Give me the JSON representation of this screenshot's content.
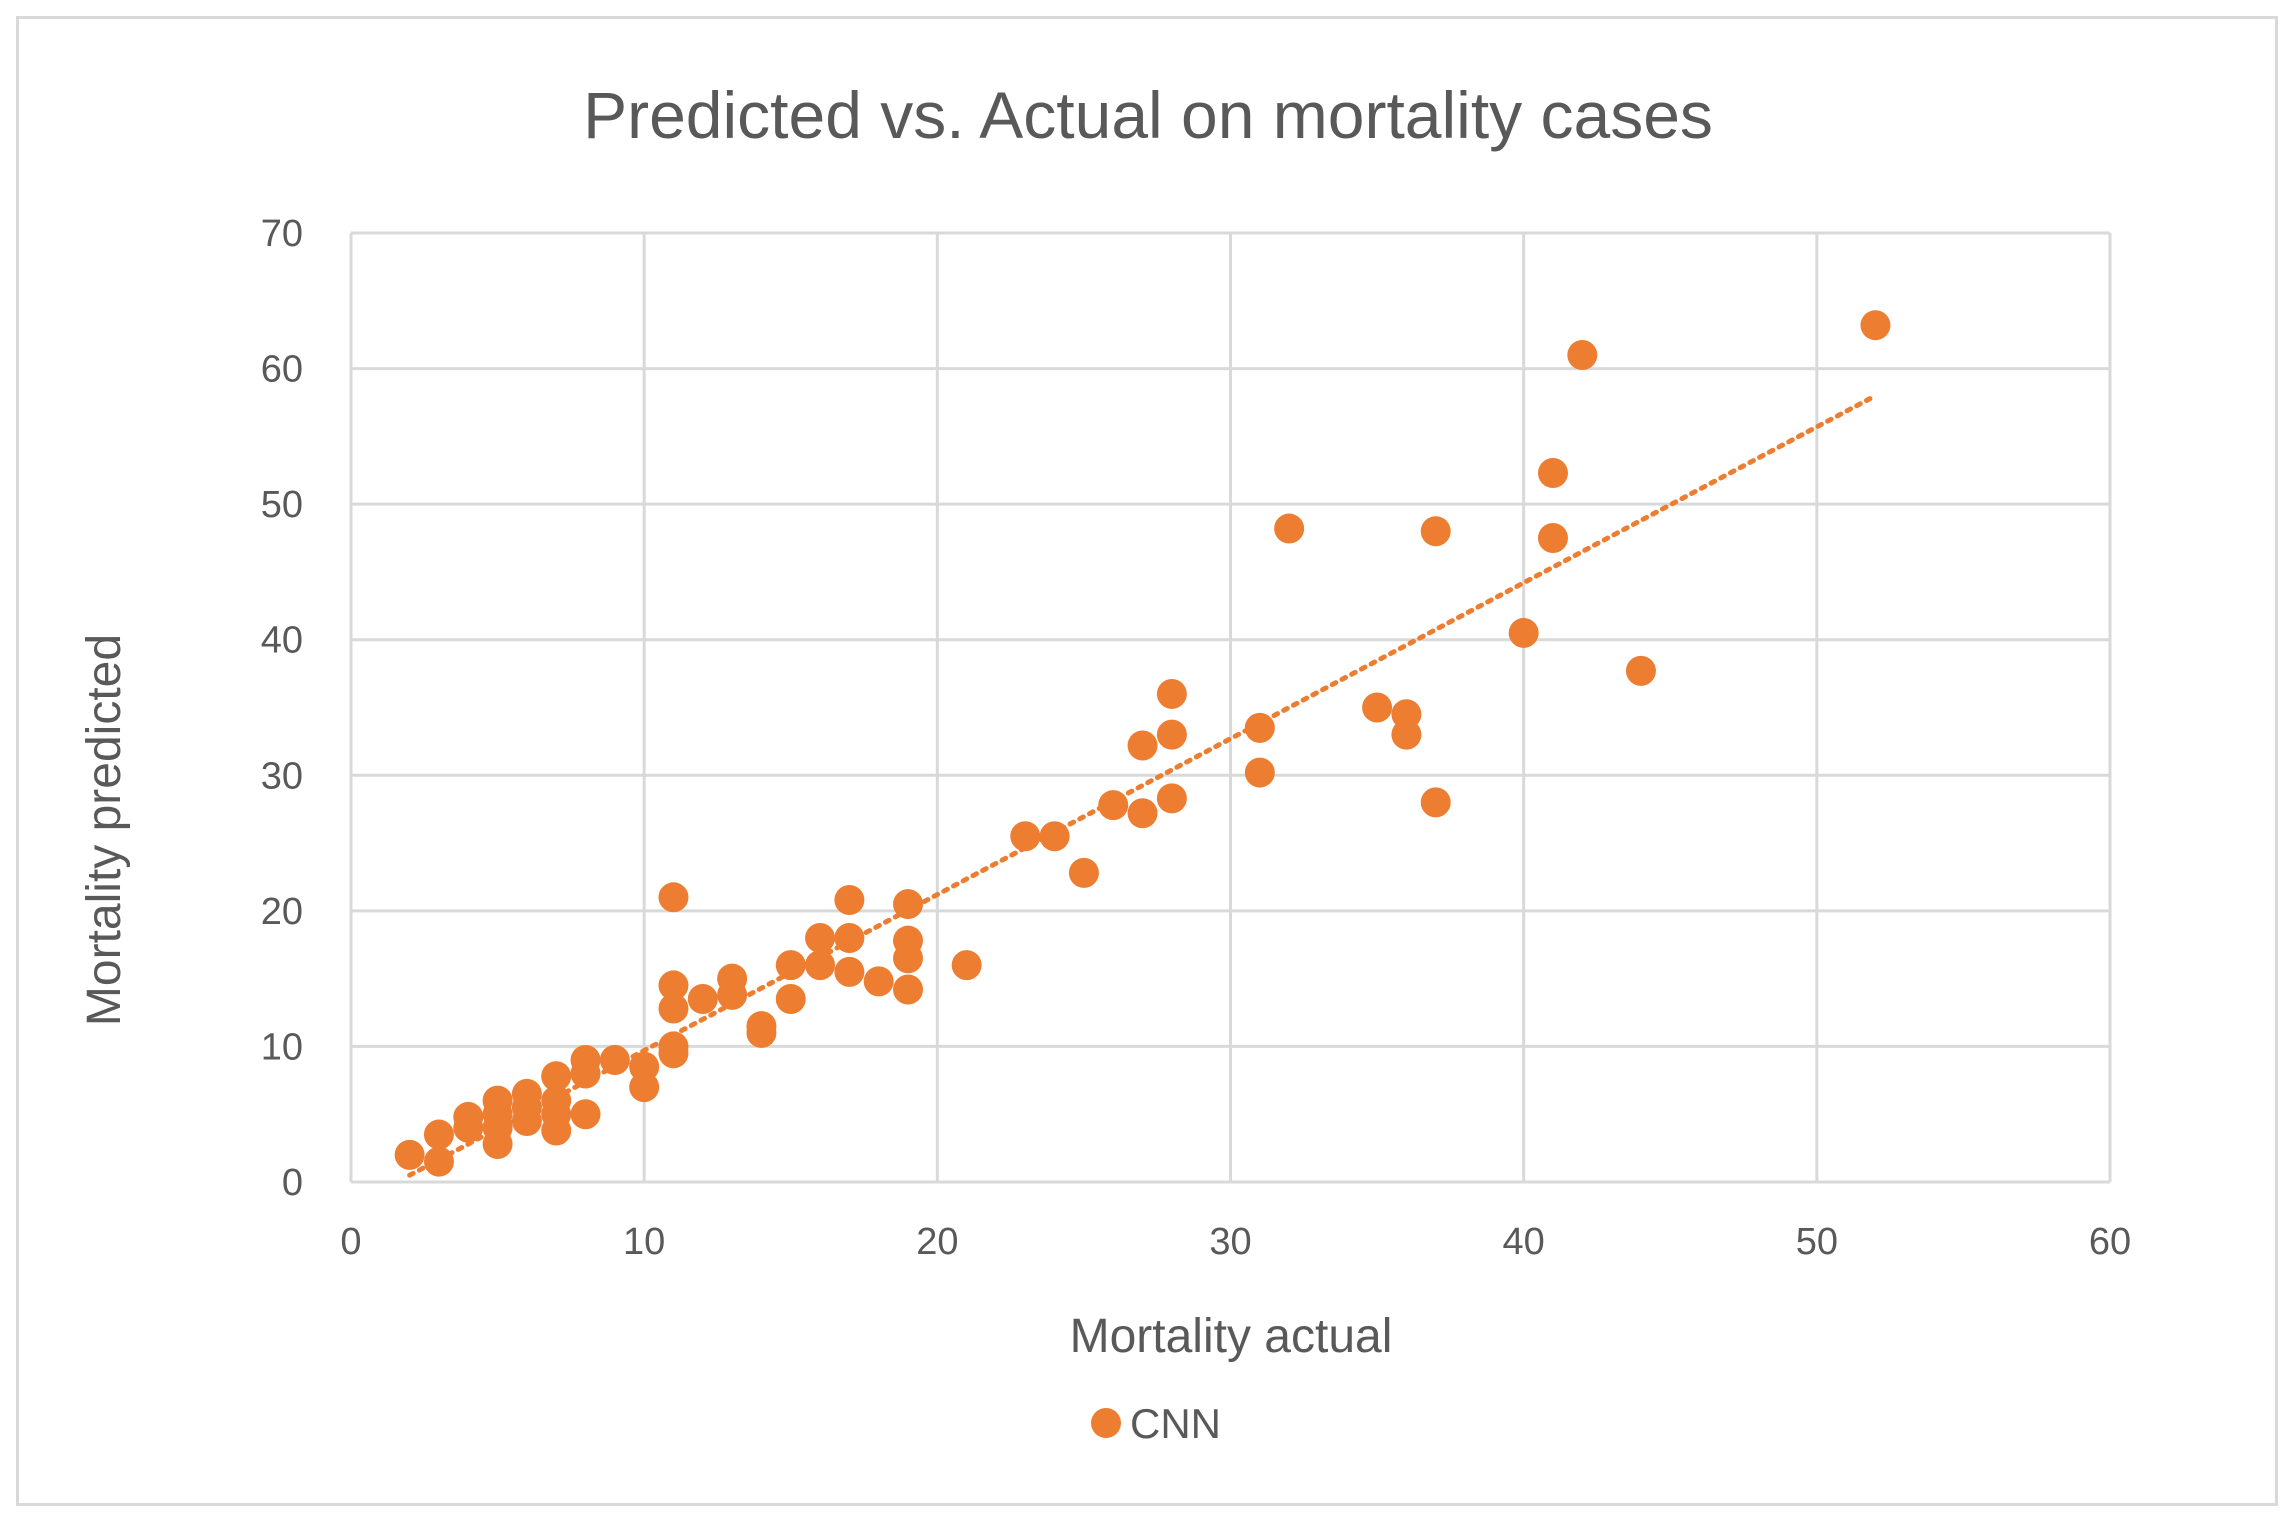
{
  "chart_data": {
    "type": "scatter",
    "title": "Predicted vs. Actual on mortality cases",
    "xlabel": "Mortality actual",
    "ylabel": "Mortality predicted",
    "xlim": [
      0,
      60
    ],
    "ylim": [
      0,
      70
    ],
    "xticks": [
      0,
      10,
      20,
      30,
      40,
      50,
      60
    ],
    "yticks": [
      0,
      10,
      20,
      30,
      40,
      50,
      60,
      70
    ],
    "grid": true,
    "legend_position": "bottom",
    "series": [
      {
        "name": "CNN",
        "color": "#ed7d31",
        "points": [
          [
            2,
            2
          ],
          [
            3,
            1.5
          ],
          [
            3,
            3.5
          ],
          [
            4,
            4
          ],
          [
            4,
            4.8
          ],
          [
            5,
            2.8
          ],
          [
            5,
            4
          ],
          [
            5,
            5
          ],
          [
            5,
            6
          ],
          [
            6,
            4.5
          ],
          [
            6,
            5.5
          ],
          [
            6,
            6.5
          ],
          [
            7,
            3.8
          ],
          [
            7,
            5
          ],
          [
            7,
            6
          ],
          [
            7,
            7.8
          ],
          [
            8,
            5
          ],
          [
            8,
            8
          ],
          [
            8,
            9
          ],
          [
            9,
            9
          ],
          [
            10,
            7
          ],
          [
            10,
            8.5
          ],
          [
            11,
            21
          ],
          [
            11,
            14.5
          ],
          [
            11,
            12.8
          ],
          [
            11,
            10
          ],
          [
            11,
            9.5
          ],
          [
            12,
            13.5
          ],
          [
            13,
            13.8
          ],
          [
            13,
            15
          ],
          [
            14,
            11
          ],
          [
            14,
            11.5
          ],
          [
            15,
            16
          ],
          [
            15,
            13.5
          ],
          [
            16,
            18
          ],
          [
            16,
            16
          ],
          [
            17,
            20.8
          ],
          [
            17,
            18
          ],
          [
            17,
            15.5
          ],
          [
            18,
            14.8
          ],
          [
            19,
            20.5
          ],
          [
            19,
            17.8
          ],
          [
            19,
            16.5
          ],
          [
            19,
            14.2
          ],
          [
            21,
            16
          ],
          [
            23,
            25.5
          ],
          [
            24,
            25.5
          ],
          [
            25,
            22.8
          ],
          [
            26,
            27.8
          ],
          [
            27,
            32.2
          ],
          [
            27,
            27.2
          ],
          [
            28,
            36
          ],
          [
            28,
            33
          ],
          [
            28,
            28.3
          ],
          [
            31,
            33.5
          ],
          [
            31,
            30.2
          ],
          [
            32,
            48.2
          ],
          [
            35,
            35
          ],
          [
            36,
            34.5
          ],
          [
            36,
            33
          ],
          [
            37,
            48
          ],
          [
            37,
            28
          ],
          [
            40,
            40.5
          ],
          [
            41,
            52.3
          ],
          [
            41,
            47.5
          ],
          [
            42,
            61
          ],
          [
            44,
            37.7
          ],
          [
            52,
            63.2
          ]
        ],
        "trendline": {
          "type": "linear",
          "x": [
            2,
            52
          ],
          "y": [
            0.5,
            58
          ]
        }
      }
    ]
  }
}
